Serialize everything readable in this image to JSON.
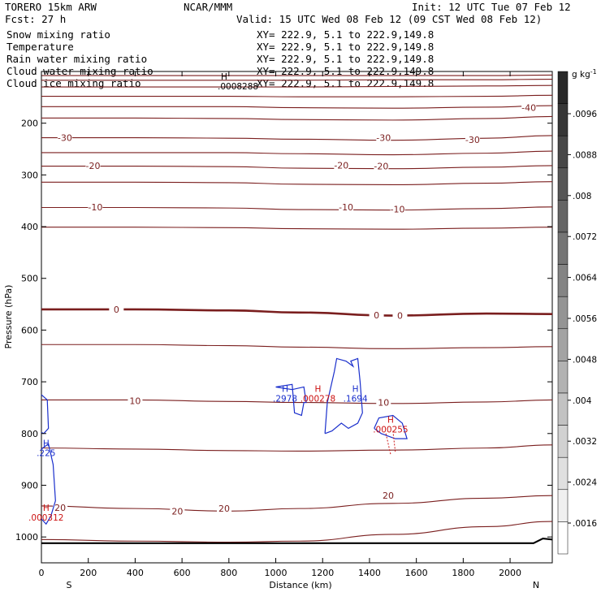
{
  "header": {
    "model": "TORERO   15km ARW",
    "center": "NCAR/MMM",
    "init": "Init: 12 UTC Tue 07 Feb 12",
    "fcst": "Fcst:   27 h",
    "valid": "Valid: 15 UTC Wed 08 Feb 12 (09 CST Wed 08 Feb 12)"
  },
  "colors": {
    "temperature": "#7a1e1e",
    "rain": "#cc1111",
    "cloud_water": "#1a2fcc",
    "snow": "#000000",
    "ice": "#000000"
  },
  "chart_data": {
    "type": "cross-section",
    "xlabel": "Distance (km)",
    "ylabel": "Pressure (hPa)",
    "xlim": [
      0,
      2180
    ],
    "ylim": [
      1050,
      100
    ],
    "xticks": [
      0,
      200,
      400,
      600,
      800,
      1000,
      1200,
      1400,
      1600,
      1800,
      2000
    ],
    "yticks": [
      200,
      300,
      400,
      500,
      600,
      700,
      800,
      900,
      1000
    ],
    "end_labels": {
      "left": "S",
      "right": "N"
    },
    "legend": [
      {
        "name": "Snow mixing ratio",
        "xy": "XY= 222.9,  5.1 to 222.9,149.8",
        "color": "#000000"
      },
      {
        "name": "Temperature",
        "xy": "XY= 222.9,  5.1 to 222.9,149.8",
        "color": "#cc1111"
      },
      {
        "name": "Rain water mixing ratio",
        "xy": "XY= 222.9,  5.1 to 222.9,149.8",
        "color": "#cc1111"
      },
      {
        "name": "Cloud water mixing ratio",
        "xy": "XY= 222.9,  5.1 to 222.9,149.8",
        "color": "#1a2fcc"
      },
      {
        "name": "Cloud ice mixing ratio",
        "xy": "XY= 222.9,  5.1 to 222.9,149.8",
        "color": "#000000"
      }
    ],
    "ice_max": {
      "label": "H",
      "value": ".0008288"
    },
    "temperature": {
      "units": "C",
      "levels": [
        {
          "t": -60,
          "p": [
            108,
            108,
            108,
            108,
            108,
            108,
            107
          ]
        },
        {
          "t": -55,
          "p": [
            117,
            117,
            117,
            117,
            116,
            116,
            115
          ]
        },
        {
          "t": -50,
          "p": [
            130,
            130,
            130,
            130,
            129,
            128,
            127
          ]
        },
        {
          "t": -45,
          "p": [
            148,
            148,
            148,
            149,
            149,
            148,
            146
          ]
        },
        {
          "t": -40,
          "p": [
            168,
            168,
            168,
            170,
            171,
            169,
            166
          ]
        },
        {
          "t": -35,
          "p": [
            190,
            190,
            191,
            193,
            194,
            191,
            187
          ]
        },
        {
          "t": -30,
          "p": [
            228,
            228,
            229,
            231,
            233,
            229,
            224
          ]
        },
        {
          "t": -25,
          "p": [
            257,
            257,
            257,
            259,
            261,
            258,
            254
          ]
        },
        {
          "t": -20,
          "p": [
            283,
            283,
            284,
            287,
            288,
            285,
            282
          ]
        },
        {
          "t": -15,
          "p": [
            314,
            314,
            315,
            318,
            319,
            316,
            313
          ]
        },
        {
          "t": -10,
          "p": [
            363,
            363,
            364,
            367,
            368,
            365,
            362
          ]
        },
        {
          "t": -5,
          "p": [
            401,
            401,
            402,
            404,
            405,
            403,
            401
          ]
        },
        {
          "t": 0,
          "p": [
            560,
            560,
            562,
            566,
            572,
            568,
            569
          ]
        },
        {
          "t": 5,
          "p": [
            628,
            628,
            630,
            633,
            636,
            634,
            632
          ]
        },
        {
          "t": 10,
          "p": [
            735,
            735,
            738,
            740,
            742,
            739,
            735
          ]
        },
        {
          "t": 15,
          "p": [
            828,
            830,
            833,
            834,
            832,
            828,
            822
          ]
        },
        {
          "t": 20,
          "p": [
            940,
            945,
            950,
            945,
            935,
            925,
            920
          ]
        },
        {
          "t": 25,
          "p": [
            1005,
            1008,
            1010,
            1008,
            995,
            980,
            970
          ]
        }
      ],
      "x_nodes": [
        0,
        400,
        800,
        1100,
        1500,
        1900,
        2180
      ],
      "labels": [
        {
          "text": "-40",
          "x": 2080,
          "p": 170
        },
        {
          "text": "-30",
          "x": 100,
          "p": 228
        },
        {
          "text": "-30",
          "x": 1460,
          "p": 228
        },
        {
          "text": "-30",
          "x": 1840,
          "p": 232
        },
        {
          "text": "-20",
          "x": 220,
          "p": 282
        },
        {
          "text": "-20",
          "x": 1280,
          "p": 281
        },
        {
          "text": "-20",
          "x": 1450,
          "p": 283
        },
        {
          "text": "-10",
          "x": 230,
          "p": 362
        },
        {
          "text": "-10",
          "x": 1300,
          "p": 362
        },
        {
          "text": "-10",
          "x": 1520,
          "p": 366
        },
        {
          "text": "0",
          "x": 320,
          "p": 560
        },
        {
          "text": "0",
          "x": 1430,
          "p": 571
        },
        {
          "text": "0",
          "x": 1530,
          "p": 572
        },
        {
          "text": "10",
          "x": 400,
          "p": 737
        },
        {
          "text": "10",
          "x": 1460,
          "p": 740
        },
        {
          "text": "20",
          "x": 80,
          "p": 943
        },
        {
          "text": "20",
          "x": 580,
          "p": 950
        },
        {
          "text": "20",
          "x": 780,
          "p": 945
        },
        {
          "text": "20",
          "x": 1480,
          "p": 920
        }
      ]
    },
    "cloud_water": {
      "units": "g/kg",
      "maxima": [
        {
          "label": "H",
          "value": ".2978",
          "x": 1040,
          "p": 735
        },
        {
          "label": "H",
          "value": ".1694",
          "x": 1340,
          "p": 735
        },
        {
          "label": "H",
          "value": ".225",
          "x": 20,
          "p": 840
        }
      ]
    },
    "rain_water": {
      "units": "g/kg",
      "maxima": [
        {
          "label": "H",
          "value": ".000278",
          "x": 1180,
          "p": 735
        },
        {
          "label": "H",
          "value": ".000255",
          "x": 1490,
          "p": 795
        },
        {
          "label": "H",
          "value": ".000312",
          "x": 20,
          "p": 965
        }
      ]
    },
    "colorbar": {
      "units": "g kg-1",
      "values": [
        ".0096",
        ".0088",
        ".008",
        ".0072",
        ".0064",
        ".0056",
        ".0048",
        ".004",
        ".0032",
        ".0024",
        ".0016"
      ]
    }
  }
}
